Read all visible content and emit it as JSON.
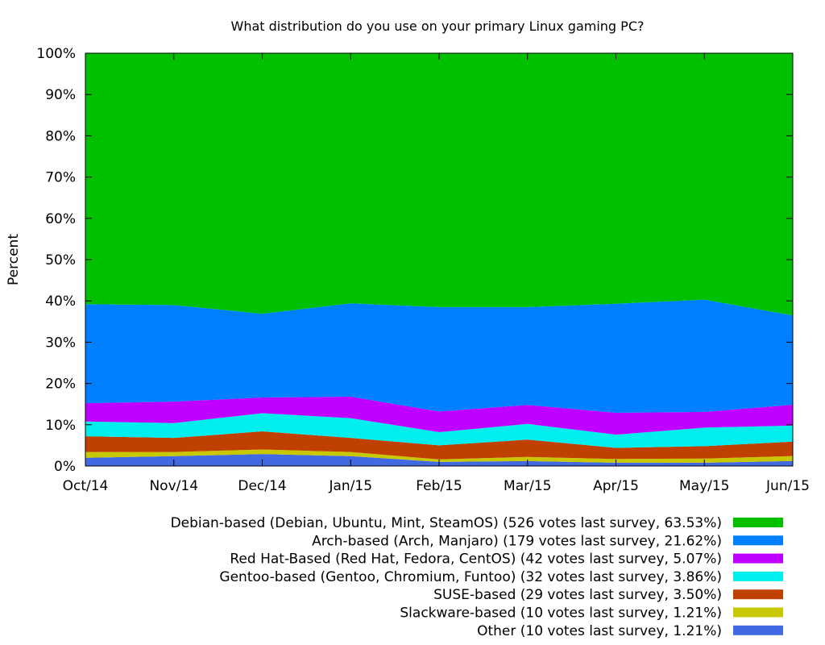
{
  "chart_data": {
    "type": "area",
    "stacked": true,
    "percent_scale": true,
    "title": "What distribution do you use on your primary Linux gaming PC?",
    "ylabel": "Percent",
    "xlabel": "",
    "ylim": [
      0,
      100
    ],
    "x": [
      "Oct/14",
      "Nov/14",
      "Dec/14",
      "Jan/15",
      "Feb/15",
      "Mar/15",
      "Apr/15",
      "May/15",
      "Jun/15"
    ],
    "y_ticks": [
      "0%",
      "10%",
      "20%",
      "30%",
      "40%",
      "50%",
      "60%",
      "70%",
      "80%",
      "90%",
      "100%"
    ],
    "legend_position": "bottom-right",
    "grid": false,
    "series": [
      {
        "name": "Other (10 votes last survey, 1.21%)",
        "color": "#4169e1",
        "values": [
          2.0,
          2.4,
          2.9,
          2.4,
          1.0,
          1.2,
          0.8,
          0.8,
          1.21
        ]
      },
      {
        "name": "Slackware-based (10 votes last survey, 1.21%)",
        "color": "#c8c800",
        "values": [
          1.4,
          1.0,
          1.1,
          1.0,
          0.6,
          1.0,
          0.9,
          1.0,
          1.21
        ]
      },
      {
        "name": "SUSE-based (29 votes last survey, 3.50%)",
        "color": "#c04000",
        "values": [
          3.8,
          3.4,
          4.4,
          3.4,
          3.4,
          4.2,
          2.7,
          3.0,
          3.5
        ]
      },
      {
        "name": "Gentoo-based (Gentoo, Chromium, Funtoo) (32 votes last survey, 3.86%)",
        "color": "#00eeee",
        "values": [
          3.6,
          3.6,
          4.4,
          4.8,
          3.2,
          3.8,
          3.2,
          4.5,
          3.86
        ]
      },
      {
        "name": "Red Hat-Based (Red Hat, Fedora, CentOS) (42 votes last survey, 5.07%)",
        "color": "#c000ff",
        "values": [
          4.4,
          5.2,
          3.8,
          5.2,
          5.0,
          4.6,
          5.3,
          3.8,
          5.07
        ]
      },
      {
        "name": "Arch-based (Arch, Manjaro) (179 votes last survey, 21.62%)",
        "color": "#0080ff",
        "values": [
          24.0,
          23.4,
          20.3,
          22.6,
          25.3,
          23.7,
          26.4,
          27.2,
          21.62
        ]
      },
      {
        "name": "Debian-based (Debian, Ubuntu, Mint, SteamOS) (526 votes last survey, 63.53%)",
        "color": "#00c000",
        "values": [
          60.8,
          61.0,
          63.1,
          60.6,
          61.5,
          61.5,
          60.7,
          59.7,
          63.53
        ]
      }
    ]
  }
}
